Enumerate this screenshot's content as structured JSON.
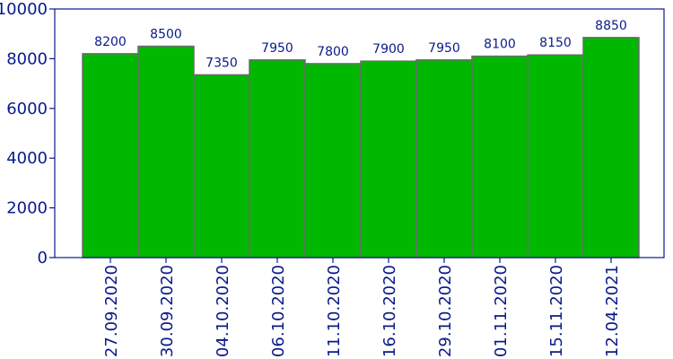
{
  "chart_data": {
    "type": "bar",
    "title": "",
    "xlabel": "",
    "ylabel": "",
    "categories": [
      "27.09.2020",
      "30.09.2020",
      "04.10.2020",
      "06.10.2020",
      "11.10.2020",
      "16.10.2020",
      "29.10.2020",
      "01.11.2020",
      "15.11.2020",
      "12.04.2021"
    ],
    "values": [
      8200,
      8500,
      7350,
      7950,
      7800,
      7900,
      7950,
      8100,
      8150,
      8850
    ],
    "ylim": [
      0,
      10000
    ],
    "yticks": [
      0,
      2000,
      4000,
      6000,
      8000,
      10000
    ],
    "grid": false,
    "legend": "none",
    "bar_color": "#00b800",
    "bar_edge_color": "#6b6b6b",
    "axis_color": "#0a1a8a",
    "text_color": "#0a1a8a"
  }
}
